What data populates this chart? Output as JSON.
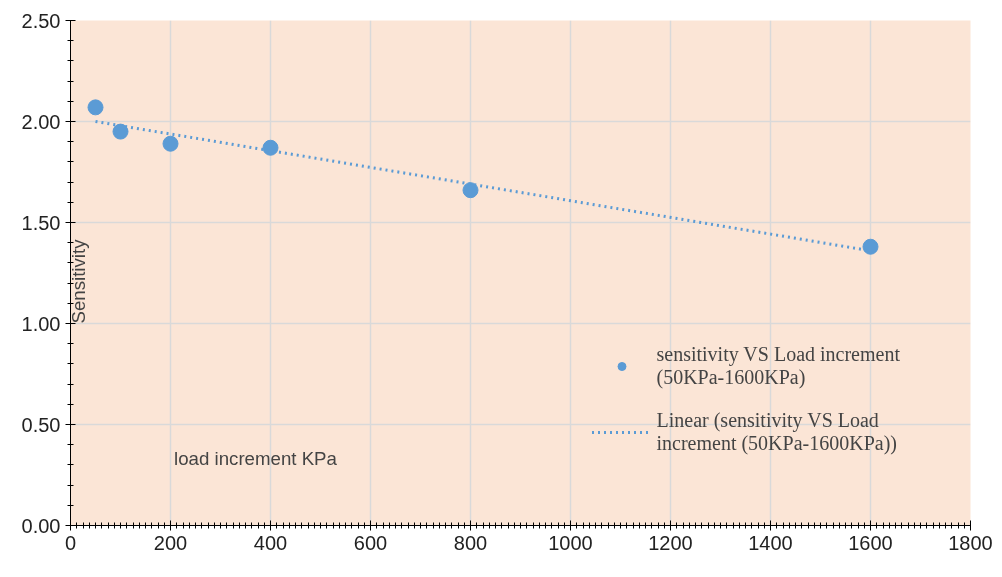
{
  "chart_data": {
    "type": "scatter",
    "xlabel": "load increment KPa",
    "ylabel": "Sensitivity",
    "xlim": [
      0,
      1800
    ],
    "xticks": [
      0,
      200,
      400,
      600,
      800,
      1000,
      1200,
      1400,
      1600,
      1800
    ],
    "ylim": [
      0,
      2.5
    ],
    "yticks": [
      {
        "value": 0,
        "label": "0.00"
      },
      {
        "value": 0.5,
        "label": "0.50"
      },
      {
        "value": 1,
        "label": "1.00"
      },
      {
        "value": 1.5,
        "label": "1.50"
      },
      {
        "value": 2,
        "label": "2.00"
      },
      {
        "value": 2.5,
        "label": "2.50"
      }
    ],
    "grid": true,
    "legend": "right",
    "marker": "circle",
    "series": [
      {
        "name": "sensitivity VS Load increment (50KPa-1600KPa)",
        "color": "#5b9bd5",
        "x": [
          50,
          100,
          200,
          400,
          800,
          1600
        ],
        "values": [
          2.07,
          1.95,
          1.89,
          1.87,
          1.66,
          1.38
        ]
      },
      {
        "name": "Linear (sensitivity VS Load increment (50KPa-1600KPa))",
        "type": "line",
        "line_style": "dotted",
        "marker": "none",
        "color": "#5b9bd5",
        "x": [
          50,
          1600
        ],
        "values": [
          2.0,
          1.36
        ]
      }
    ]
  }
}
